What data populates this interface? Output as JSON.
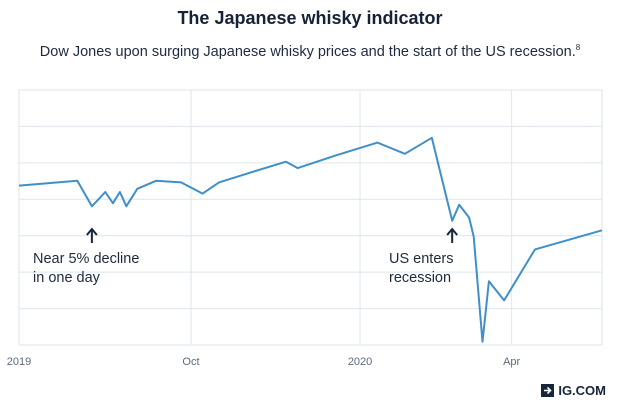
{
  "header": {
    "title": "The Japanese whisky indicator",
    "subtitle": "Dow Jones upon surging Japanese whisky prices and the start of the US recession.",
    "footnote_marker": "8"
  },
  "annotations": {
    "left_line1": "Near 5% decline",
    "left_line2": "in one day",
    "right_line1": "US enters",
    "right_line2": "recession"
  },
  "branding": {
    "logo_text": "IG.COM"
  },
  "colors": {
    "line": "#3f8fc9",
    "grid": "#dce6ef",
    "text": "#1d2a3f"
  },
  "chart_data": {
    "type": "line",
    "title": "The Japanese whisky indicator",
    "xlabel": "",
    "ylabel": "",
    "grid": true,
    "xlim": [
      0,
      100
    ],
    "ylim": [
      0,
      8
    ],
    "x_ticks": [
      {
        "x": 0,
        "label": "2019"
      },
      {
        "x": 29.5,
        "label": "Oct"
      },
      {
        "x": 58.5,
        "label": "2020"
      },
      {
        "x": 84.5,
        "label": "Apr"
      }
    ],
    "series": [
      {
        "name": "Dow Jones",
        "x": [
          0,
          10,
          12.5,
          14.8,
          16.1,
          17.3,
          18.4,
          20.3,
          23.5,
          27.8,
          31.5,
          34.3,
          39.5,
          45.8,
          47.8,
          54.4,
          61.5,
          66.2,
          70.8,
          74.3,
          75.5,
          77.2,
          78,
          79.5,
          80.6,
          83.2,
          88.5,
          100
        ],
        "y": [
          5.0,
          5.15,
          4.35,
          4.8,
          4.45,
          4.8,
          4.35,
          4.9,
          5.15,
          5.1,
          4.75,
          5.1,
          5.4,
          5.75,
          5.55,
          5.95,
          6.35,
          6.0,
          6.5,
          3.9,
          4.4,
          4.0,
          3.4,
          0.1,
          2.0,
          1.4,
          3.0,
          3.6
        ]
      }
    ],
    "annotations": [
      {
        "x": 12.5,
        "text": "Near 5% decline in one day"
      },
      {
        "x": 74.3,
        "text": "US enters recession"
      }
    ]
  }
}
